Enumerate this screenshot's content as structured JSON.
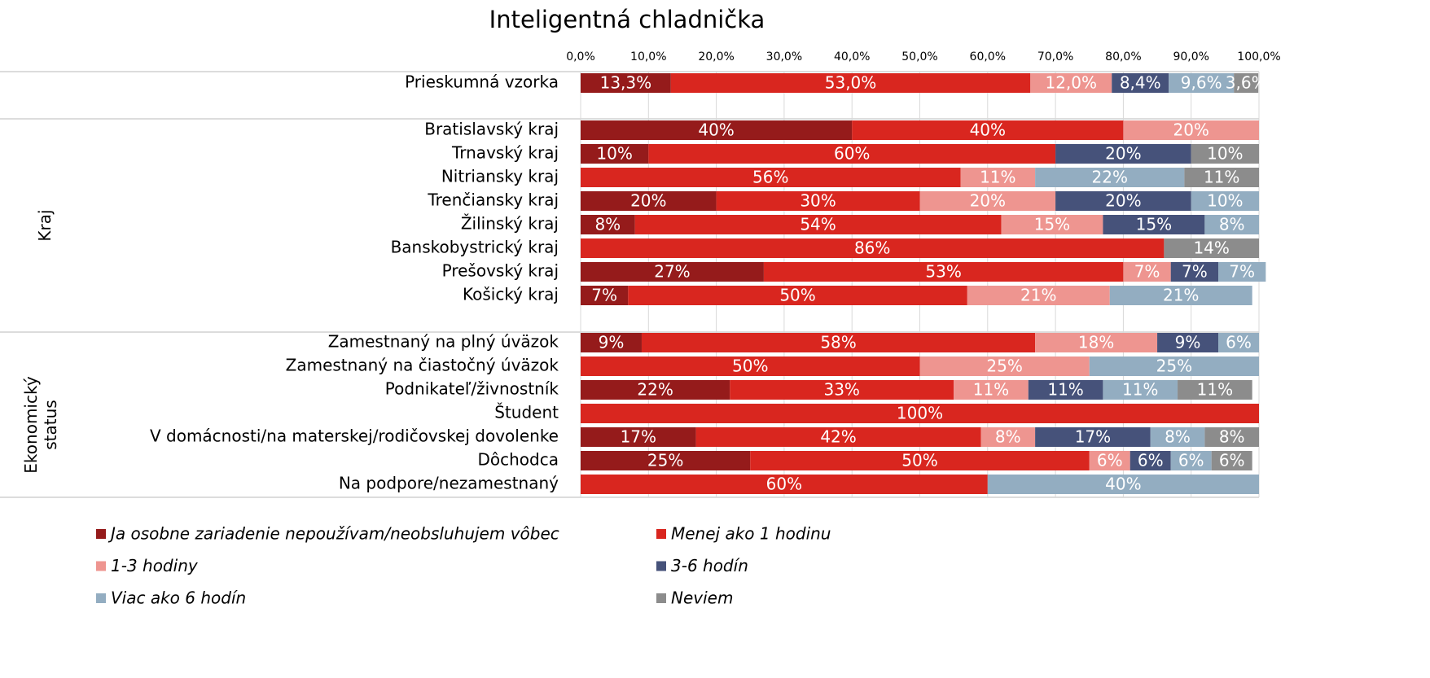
{
  "chart_data": {
    "type": "stacked_bar_horizontal",
    "title": "Inteligentná chladnička",
    "categories": [
      "Prieskumná vzorka",
      null,
      "Bratislavský kraj",
      "Trnavský kraj",
      "Nitriansky kraj",
      "Trenčiansky kraj",
      "Žilinský kraj",
      "Banskobystrický kraj",
      "Prešovský kraj",
      "Košický kraj",
      null,
      "Zamestnaný na plný úväzok",
      "Zamestnaný na čiastočný úväzok",
      "Podnikateľ/živnostník",
      "Študent",
      "V domácnosti/na materskej/rodičovskej dovolenke",
      "Dôchodca",
      "Na podpore/nezamestnaný"
    ],
    "groups": [
      {
        "label": "Kraj"
      },
      {
        "label": "Ekonomický status"
      }
    ],
    "xlim": [
      0,
      100
    ],
    "xticks": [
      {
        "value": 0,
        "label": "0,0%"
      },
      {
        "value": 10,
        "label": "10,0%"
      },
      {
        "value": 20,
        "label": "20,0%"
      },
      {
        "value": 30,
        "label": "30,0%"
      },
      {
        "value": 40,
        "label": "40,0%"
      },
      {
        "value": 50,
        "label": "50,0%"
      },
      {
        "value": 60,
        "label": "60,0%"
      },
      {
        "value": 70,
        "label": "70,0%"
      },
      {
        "value": 80,
        "label": "80,0%"
      },
      {
        "value": 90,
        "label": "90,0%"
      },
      {
        "value": 100,
        "label": "100,0%"
      }
    ],
    "grid": true,
    "series": [
      {
        "name": "Ja osobne zariadenie nepoužívam/neobsluhujem vôbec",
        "color": "#951b1b",
        "values": [
          13.3,
          null,
          40,
          10,
          null,
          20,
          8,
          null,
          27,
          7,
          null,
          9,
          null,
          22,
          null,
          17,
          25,
          null
        ],
        "value_labels": [
          "13,3%",
          null,
          "40%",
          "10%",
          null,
          "20%",
          "8%",
          null,
          "27%",
          "7%",
          null,
          "9%",
          null,
          "22%",
          null,
          "17%",
          "25%",
          null
        ]
      },
      {
        "name": "Menej ako 1 hodinu",
        "color": "#d9261f",
        "values": [
          53.0,
          null,
          40,
          60,
          56,
          30,
          54,
          86,
          53,
          50,
          null,
          58,
          50,
          33,
          100,
          42,
          50,
          60
        ],
        "value_labels": [
          "53,0%",
          null,
          "40%",
          "60%",
          "56%",
          "30%",
          "54%",
          "86%",
          "53%",
          "50%",
          null,
          "58%",
          "50%",
          "33%",
          "100%",
          "42%",
          "50%",
          "60%"
        ]
      },
      {
        "name": "1-3 hodiny",
        "color": "#ee9590",
        "values": [
          12.0,
          null,
          20,
          null,
          11,
          20,
          15,
          null,
          7,
          21,
          null,
          18,
          25,
          11,
          null,
          8,
          6,
          null
        ],
        "value_labels": [
          "12,0%",
          null,
          "20%",
          null,
          "11%",
          "20%",
          "15%",
          null,
          "7%",
          "21%",
          null,
          "18%",
          "25%",
          "11%",
          null,
          "8%",
          "6%",
          null
        ]
      },
      {
        "name": "3-6 hodín",
        "color": "#46527a",
        "values": [
          8.4,
          null,
          null,
          20,
          null,
          20,
          15,
          null,
          7,
          null,
          null,
          9,
          null,
          11,
          null,
          17,
          6,
          null
        ],
        "value_labels": [
          "8,4%",
          null,
          null,
          "20%",
          null,
          "20%",
          "15%",
          null,
          "7%",
          null,
          null,
          "9%",
          null,
          "11%",
          null,
          "17%",
          "6%",
          null
        ]
      },
      {
        "name": "Viac ako 6 hodín",
        "color": "#93adc1",
        "values": [
          9.6,
          null,
          null,
          null,
          22,
          10,
          8,
          null,
          7,
          21,
          null,
          6,
          25,
          11,
          null,
          8,
          6,
          40
        ],
        "value_labels": [
          "9,6%",
          null,
          null,
          null,
          "22%",
          "10%",
          "8%",
          null,
          "7%",
          "21%",
          null,
          "6%",
          "25%",
          "11%",
          null,
          "8%",
          "6%",
          "40%"
        ]
      },
      {
        "name": "Neviem",
        "color": "#8c8c8c",
        "values": [
          3.6,
          null,
          null,
          10,
          11,
          null,
          null,
          14,
          null,
          null,
          null,
          null,
          null,
          11,
          null,
          8,
          6,
          null
        ],
        "value_labels": [
          "3,6%",
          null,
          null,
          "10%",
          "11%",
          null,
          null,
          "14%",
          null,
          null,
          null,
          null,
          null,
          "11%",
          null,
          "8%",
          "6%",
          null
        ]
      }
    ]
  }
}
